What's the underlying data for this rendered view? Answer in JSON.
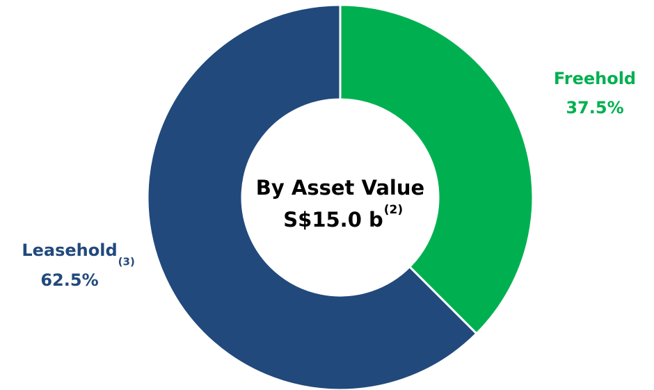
{
  "chart_data": {
    "type": "donut",
    "categories": [
      "Freehold",
      "Leasehold"
    ],
    "values": [
      37.5,
      62.5
    ],
    "value_labels": [
      "37.5%",
      "62.5%"
    ],
    "colors": [
      "#00b050",
      "#21497c"
    ],
    "category_footnotes": [
      null,
      "(3)"
    ],
    "center_text": [
      "By Asset Value",
      "S$15.0 b"
    ],
    "center_footnote": "(2)"
  }
}
